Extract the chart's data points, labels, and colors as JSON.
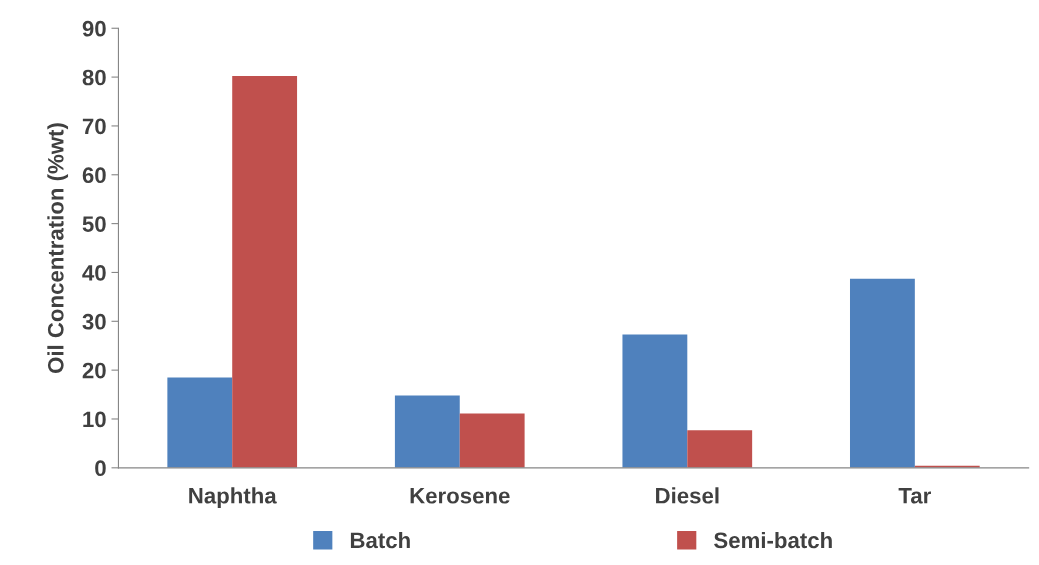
{
  "chart_data": {
    "type": "bar",
    "ylabel": "Oil Concentration (%wt)",
    "categories": [
      "Naphtha",
      "Kerosene",
      "Diesel",
      "Tar"
    ],
    "series": [
      {
        "name": "Batch",
        "color": "#4f81bd",
        "values": [
          18.5,
          14.8,
          27.3,
          38.7
        ]
      },
      {
        "name": "Semi-batch",
        "color": "#c0504d",
        "values": [
          80.2,
          11.1,
          7.7,
          0.4
        ]
      }
    ],
    "ylim": [
      0,
      90
    ],
    "yticks": [
      0,
      10,
      20,
      30,
      40,
      50,
      60,
      70,
      80,
      90
    ],
    "grid": false,
    "legend": "bottom"
  }
}
